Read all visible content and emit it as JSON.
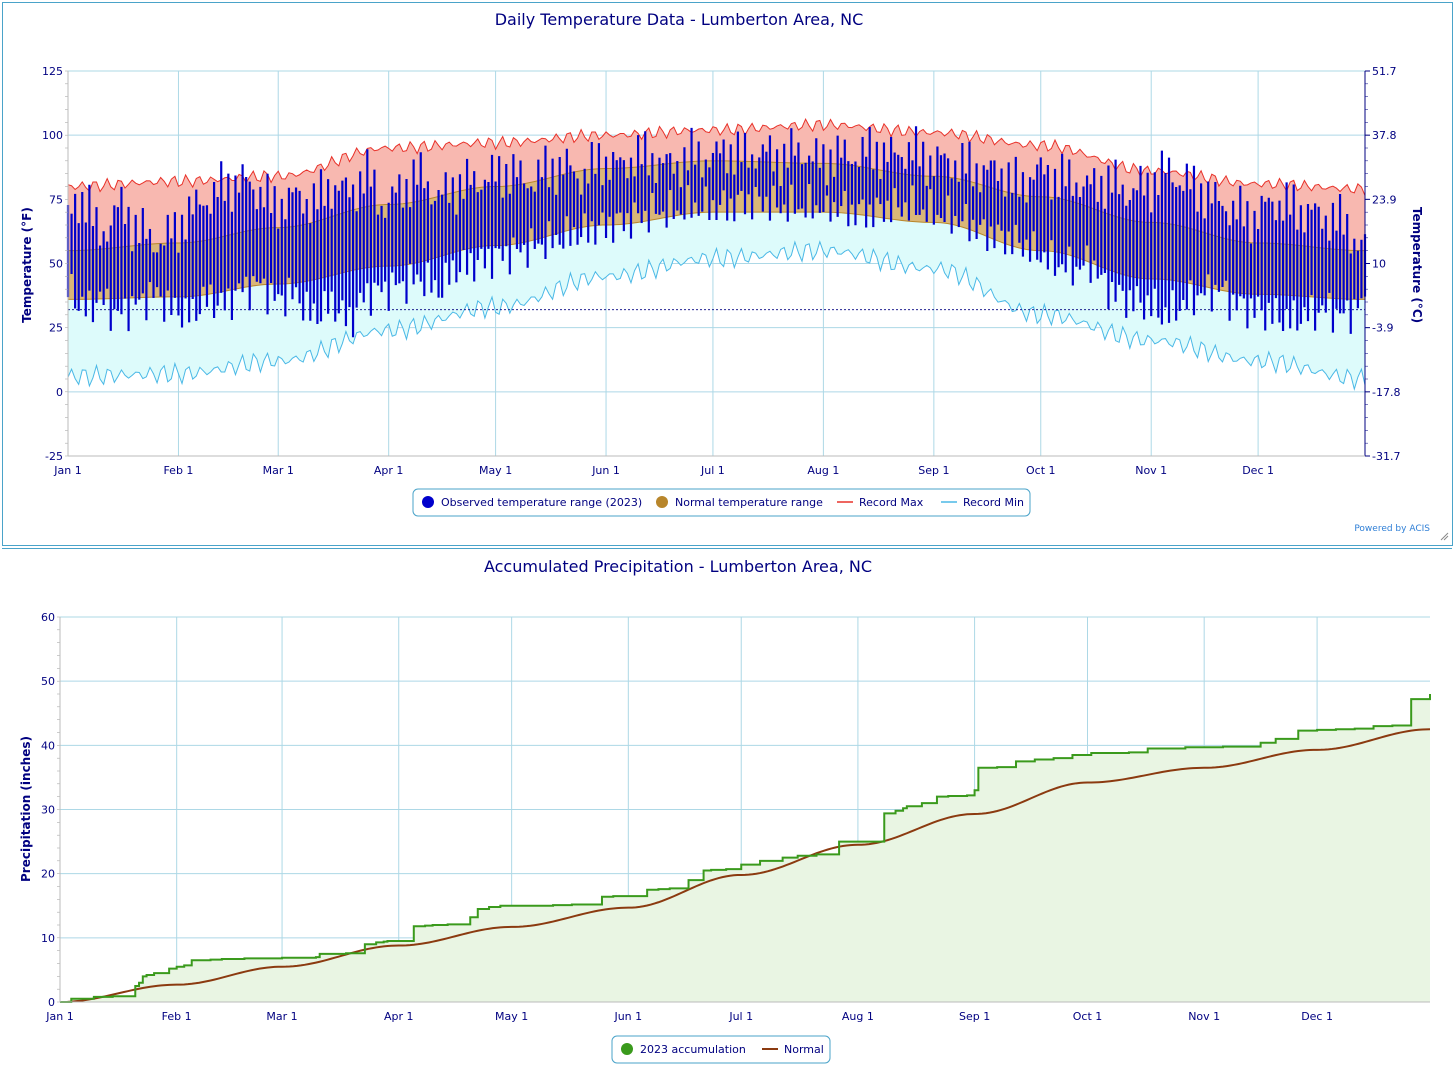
{
  "temperature_chart": {
    "title": "Daily Temperature Data - Lumberton Area, NC",
    "ylabel_left": "Temperature (°F)",
    "ylabel_right": "Temperature (°C)",
    "credit": "Powered by ACIS",
    "y_ticks_f": [
      "125",
      "100",
      "75",
      "50",
      "25",
      "0",
      "-25"
    ],
    "y_ticks_c": [
      "51.7",
      "37.8",
      "23.9",
      "10",
      "-3.9",
      "-17.8",
      "-31.7"
    ],
    "x_ticks": [
      "Jan 1",
      "Feb 1",
      "Mar 1",
      "Apr 1",
      "May 1",
      "Jun 1",
      "Jul 1",
      "Aug 1",
      "Sep 1",
      "Oct 1",
      "Nov 1",
      "Dec 1"
    ],
    "legend": {
      "observed": "Observed temperature range (2023)",
      "normal": "Normal temperature range",
      "record_max": "Record Max",
      "record_min": "Record Min"
    }
  },
  "precip_chart": {
    "title": "Accumulated Precipitation - Lumberton Area, NC",
    "ylabel": "Precipitation (inches)",
    "y_ticks": [
      "60",
      "50",
      "40",
      "30",
      "20",
      "10",
      "0"
    ],
    "x_ticks": [
      "Jan 1",
      "Feb 1",
      "Mar 1",
      "Apr 1",
      "May 1",
      "Jun 1",
      "Jul 1",
      "Aug 1",
      "Sep 1",
      "Oct 1",
      "Nov 1",
      "Dec 1"
    ],
    "legend": {
      "accum": "2023 accumulation",
      "normal": "Normal"
    }
  },
  "colors": {
    "observed": "#0000cc",
    "normal_fill": "#d9b678",
    "normal_line": "#b8862b",
    "record_max_fill": "#f8b8b0",
    "record_max_line": "#e8322a",
    "record_min_fill": "#ddfbfb",
    "record_min_line": "#4ab8e6",
    "accum_line": "#3a9a1c",
    "accum_fill": "#e9f5e3",
    "precip_normal_line": "#8b3a10",
    "grid": "#add8e6",
    "text": "#000080"
  },
  "chart_data": [
    {
      "type": "area",
      "title": "Daily Temperature Data - Lumberton Area, NC",
      "ylabel": "Temperature (°F)",
      "ylabel_right": "Temperature (°C)",
      "ylim": [
        -25,
        125
      ],
      "xlim_days": [
        1,
        365
      ],
      "grid": true,
      "legend_position": "bottom",
      "freezing_line_f": 32,
      "month_start_days": [
        1,
        32,
        60,
        91,
        121,
        152,
        182,
        213,
        244,
        274,
        305,
        335
      ],
      "normal_max_by_month": {
        "x": [
          1,
          32,
          60,
          91,
          121,
          152,
          182,
          213,
          244,
          274,
          305,
          335,
          365
        ],
        "values": [
          55,
          58,
          64,
          73,
          80,
          87,
          90,
          89,
          84,
          76,
          66,
          58,
          55
        ]
      },
      "normal_min_by_month": {
        "x": [
          1,
          32,
          60,
          91,
          121,
          152,
          182,
          213,
          244,
          274,
          305,
          335,
          365
        ],
        "values": [
          36,
          37,
          42,
          49,
          57,
          65,
          70,
          70,
          66,
          55,
          44,
          38,
          36
        ]
      },
      "record_max_by_month": {
        "x": [
          1,
          32,
          60,
          91,
          121,
          152,
          182,
          213,
          244,
          274,
          305,
          335,
          365
        ],
        "values": [
          80,
          82,
          84,
          95,
          97,
          100,
          102,
          104,
          101,
          96,
          86,
          81,
          79
        ]
      },
      "record_min_by_month": {
        "x": [
          1,
          32,
          60,
          91,
          121,
          152,
          182,
          213,
          244,
          274,
          305,
          335,
          365
        ],
        "values": [
          6,
          7,
          12,
          24,
          33,
          45,
          52,
          55,
          48,
          30,
          20,
          12,
          5
        ]
      },
      "observed_daily_2023": {
        "note": "sampled observed high/low ranges",
        "x": [
          1,
          6,
          10,
          15,
          20,
          25,
          31,
          35,
          40,
          45,
          50,
          55,
          59,
          64,
          70,
          75,
          80,
          85,
          90,
          95,
          100,
          105,
          110,
          115,
          120,
          125,
          130,
          135,
          140,
          145,
          151,
          156,
          161,
          166,
          171,
          176,
          181,
          186,
          191,
          196,
          201,
          206,
          212,
          217,
          222,
          227,
          232,
          237,
          243,
          248,
          253,
          258,
          263,
          268,
          273,
          278,
          283,
          288,
          293,
          298,
          304,
          309,
          314,
          319,
          324,
          329,
          334,
          339,
          344,
          349,
          354,
          359,
          364
        ],
        "high": [
          68,
          76,
          60,
          72,
          65,
          58,
          62,
          70,
          75,
          80,
          82,
          78,
          72,
          76,
          74,
          80,
          78,
          84,
          72,
          80,
          84,
          76,
          80,
          82,
          84,
          86,
          82,
          86,
          88,
          84,
          90,
          88,
          92,
          90,
          88,
          92,
          91,
          94,
          92,
          93,
          91,
          94,
          90,
          92,
          92,
          94,
          92,
          94,
          90,
          90,
          88,
          86,
          86,
          80,
          86,
          84,
          82,
          80,
          82,
          78,
          80,
          86,
          82,
          78,
          74,
          70,
          68,
          74,
          72,
          70,
          68,
          66,
          56
        ],
        "low": [
          40,
          32,
          36,
          30,
          34,
          38,
          32,
          30,
          36,
          34,
          40,
          42,
          36,
          38,
          30,
          34,
          28,
          38,
          40,
          42,
          44,
          40,
          48,
          50,
          52,
          54,
          56,
          58,
          60,
          62,
          64,
          66,
          68,
          70,
          70,
          72,
          72,
          72,
          74,
          74,
          72,
          72,
          72,
          72,
          70,
          70,
          72,
          72,
          70,
          68,
          66,
          62,
          60,
          58,
          54,
          50,
          48,
          50,
          40,
          36,
          34,
          30,
          34,
          38,
          40,
          34,
          32,
          30,
          28,
          30,
          32,
          30,
          34
        ]
      },
      "series": [
        {
          "name": "Observed temperature range (2023)"
        },
        {
          "name": "Normal temperature range"
        },
        {
          "name": "Record Max"
        },
        {
          "name": "Record Min"
        }
      ]
    },
    {
      "type": "line",
      "title": "Accumulated Precipitation - Lumberton Area, NC",
      "ylabel": "Precipitation (inches)",
      "ylim": [
        0,
        60
      ],
      "xlim_days": [
        1,
        365
      ],
      "grid": true,
      "legend_position": "bottom",
      "month_start_days": [
        1,
        32,
        60,
        91,
        121,
        152,
        182,
        213,
        244,
        274,
        305,
        335
      ],
      "series": [
        {
          "name": "2023 accumulation",
          "x": [
            1,
            4,
            10,
            15,
            20,
            21,
            22,
            23,
            24,
            26,
            30,
            32,
            34,
            36,
            41,
            44,
            50,
            60,
            69,
            70,
            77,
            80,
            82,
            85,
            87,
            88,
            90,
            95,
            98,
            100,
            104,
            110,
            112,
            115,
            118,
            120,
            126,
            132,
            137,
            140,
            145,
            148,
            152,
            157,
            160,
            163,
            168,
            172,
            174,
            178,
            182,
            187,
            193,
            197,
            202,
            208,
            212,
            220,
            223,
            225,
            226,
            230,
            234,
            237,
            242,
            244,
            245,
            250,
            255,
            260,
            265,
            270,
            275,
            285,
            290,
            300,
            310,
            315,
            320,
            324,
            330,
            335,
            340,
            345,
            350,
            355,
            360,
            365
          ],
          "values": [
            0.0,
            0.5,
            0.8,
            0.9,
            0.9,
            2.5,
            3.0,
            4.0,
            4.2,
            4.5,
            5.2,
            5.5,
            5.7,
            6.5,
            6.6,
            6.7,
            6.8,
            6.9,
            7.0,
            7.5,
            7.6,
            7.6,
            9.0,
            9.3,
            9.4,
            9.5,
            9.5,
            11.8,
            11.9,
            12.0,
            12.1,
            13.2,
            14.5,
            14.8,
            15.0,
            15.0,
            15.0,
            15.1,
            15.2,
            15.2,
            16.4,
            16.5,
            16.5,
            17.5,
            17.6,
            17.7,
            19.0,
            20.5,
            20.6,
            20.7,
            21.4,
            22.0,
            22.5,
            22.8,
            23.0,
            25.0,
            25.0,
            29.4,
            29.8,
            30.2,
            30.5,
            31.0,
            32.0,
            32.1,
            32.2,
            33.0,
            36.5,
            36.6,
            37.5,
            37.8,
            38.0,
            38.5,
            38.8,
            38.9,
            39.5,
            39.7,
            39.8,
            39.8,
            40.4,
            41.0,
            42.3,
            42.4,
            42.5,
            42.6,
            43.0,
            43.1,
            47.2,
            48.0
          ],
          "line_style": "step"
        },
        {
          "name": "Normal",
          "x": [
            1,
            32,
            60,
            91,
            121,
            152,
            182,
            213,
            244,
            274,
            305,
            335,
            365
          ],
          "values": [
            0.0,
            2.7,
            5.5,
            8.8,
            11.7,
            14.7,
            19.8,
            24.5,
            29.3,
            34.2,
            36.5,
            39.3,
            42.5
          ]
        }
      ]
    }
  ]
}
